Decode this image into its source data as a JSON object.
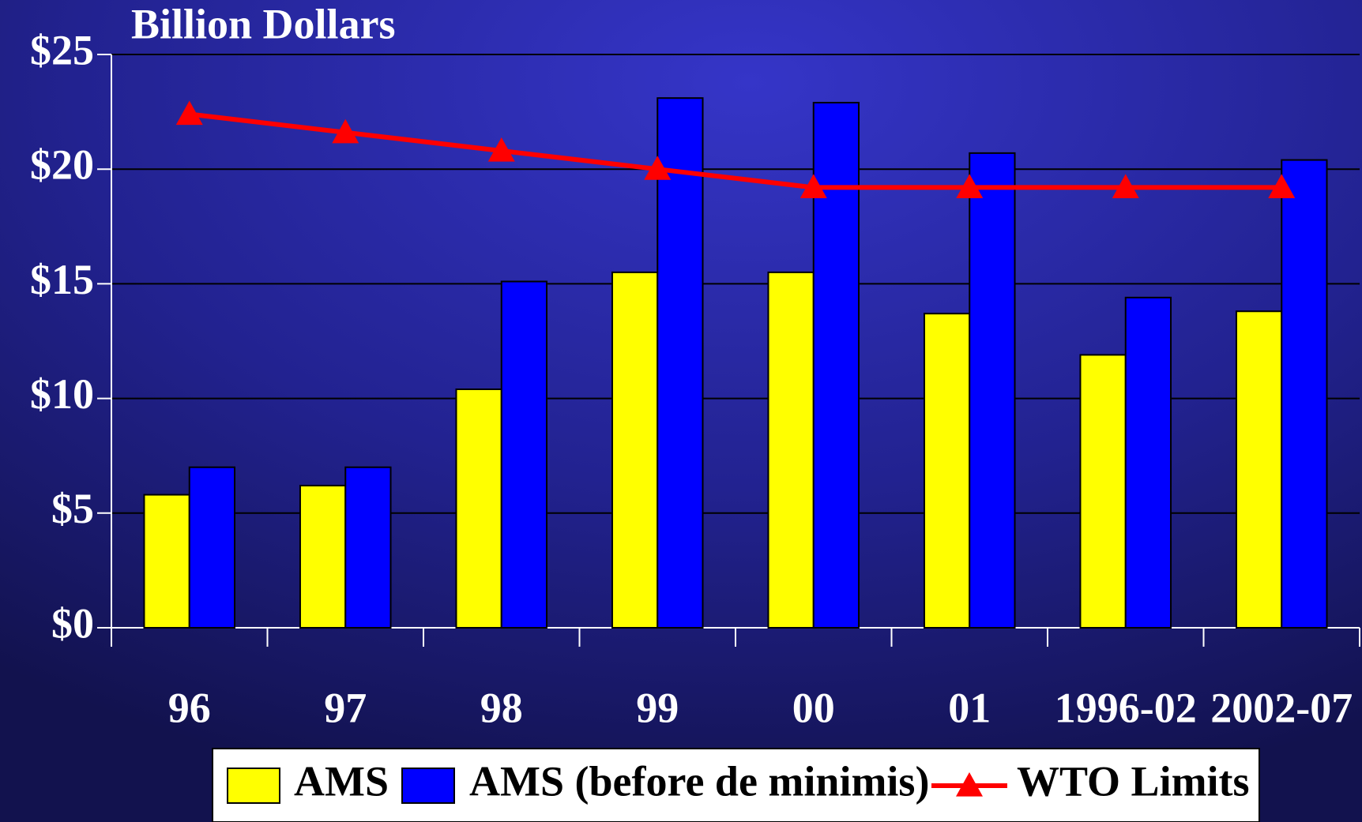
{
  "chart_data": {
    "type": "bar",
    "title": "Billion Dollars",
    "categories": [
      "96",
      "97",
      "98",
      "99",
      "00",
      "01",
      "1996-02",
      "2002-07"
    ],
    "series": [
      {
        "name": "AMS",
        "type": "bar",
        "color": "#ffff00",
        "values": [
          5.8,
          6.2,
          10.4,
          15.5,
          15.5,
          13.7,
          11.9,
          13.8
        ]
      },
      {
        "name": "AMS (before de minimis)",
        "type": "bar",
        "color": "#0000ff",
        "values": [
          7.0,
          7.0,
          15.1,
          23.1,
          22.9,
          20.7,
          14.4,
          20.4
        ]
      },
      {
        "name": "WTO Limits",
        "type": "line",
        "color": "#ff0000",
        "values": [
          22.4,
          21.6,
          20.8,
          20.0,
          19.2,
          19.2,
          19.2,
          19.2
        ]
      }
    ],
    "ylim": [
      0,
      25
    ],
    "yticks": [
      {
        "value": 0,
        "label": "$0"
      },
      {
        "value": 5,
        "label": "$5"
      },
      {
        "value": 10,
        "label": "$10"
      },
      {
        "value": 15,
        "label": "$15"
      },
      {
        "value": 20,
        "label": "$20"
      },
      {
        "value": 25,
        "label": "$25"
      }
    ],
    "grid": true,
    "legend": "bottom"
  }
}
